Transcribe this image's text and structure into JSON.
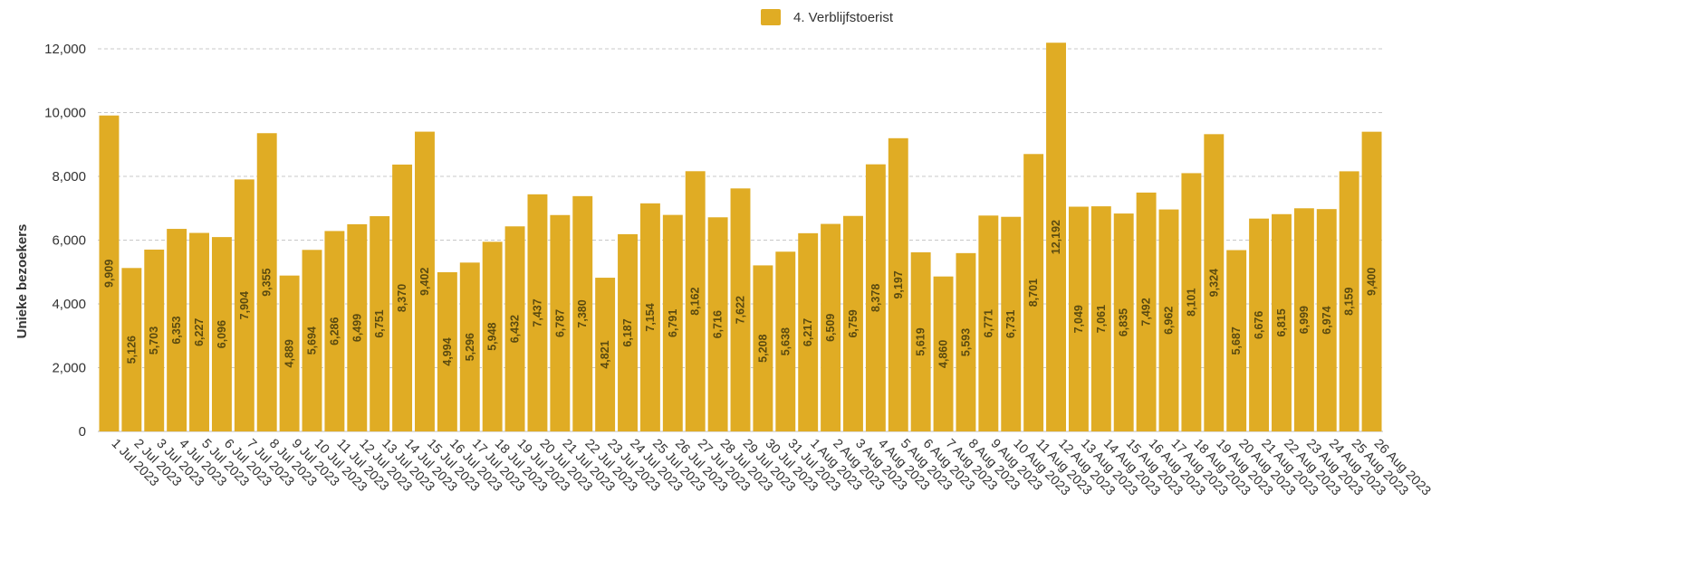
{
  "chart_data": {
    "type": "bar",
    "ylabel": "Unieke bezoekers",
    "ylim": [
      0,
      12000
    ],
    "yticks": [
      0,
      2000,
      4000,
      6000,
      8000,
      10000,
      12000
    ],
    "ytick_labels": [
      "0",
      "2,000",
      "4,000",
      "6,000",
      "8,000",
      "10,000",
      "12,000"
    ],
    "grid": true,
    "legend_position": "top-center",
    "categories": [
      "1 Jul 2023",
      "2 Jul 2023",
      "3 Jul 2023",
      "4 Jul 2023",
      "5 Jul 2023",
      "6 Jul 2023",
      "7 Jul 2023",
      "8 Jul 2023",
      "9 Jul 2023",
      "10 Jul 2023",
      "11 Jul 2023",
      "12 Jul 2023",
      "13 Jul 2023",
      "14 Jul 2023",
      "15 Jul 2023",
      "16 Jul 2023",
      "17 Jul 2023",
      "18 Jul 2023",
      "19 Jul 2023",
      "20 Jul 2023",
      "21 Jul 2023",
      "22 Jul 2023",
      "23 Jul 2023",
      "24 Jul 2023",
      "25 Jul 2023",
      "26 Jul 2023",
      "27 Jul 2023",
      "28 Jul 2023",
      "29 Jul 2023",
      "30 Jul 2023",
      "31 Jul 2023",
      "1 Aug 2023",
      "2 Aug 2023",
      "3 Aug 2023",
      "4 Aug 2023",
      "5 Aug 2023",
      "6 Aug 2023",
      "7 Aug 2023",
      "8 Aug 2023",
      "9 Aug 2023",
      "10 Aug 2023",
      "11 Aug 2023",
      "12 Aug 2023",
      "13 Aug 2023",
      "14 Aug 2023",
      "15 Aug 2023",
      "16 Aug 2023",
      "17 Aug 2023",
      "18 Aug 2023",
      "19 Aug 2023",
      "20 Aug 2023",
      "21 Aug 2023",
      "22 Aug 2023",
      "23 Aug 2023",
      "24 Aug 2023",
      "25 Aug 2023",
      "26 Aug 2023"
    ],
    "series": [
      {
        "name": "4. Verblijfstoerist",
        "color": "#e0ac24",
        "values": [
          9909,
          5126,
          5703,
          6353,
          6227,
          6096,
          7904,
          9355,
          4889,
          5694,
          6286,
          6499,
          6751,
          8370,
          9402,
          4994,
          5296,
          5948,
          6432,
          7437,
          6787,
          7380,
          4821,
          6187,
          7154,
          6791,
          8162,
          6716,
          7622,
          5208,
          5638,
          6217,
          6509,
          6759,
          8378,
          9197,
          5619,
          4860,
          5593,
          6771,
          6731,
          8701,
          12192,
          7049,
          7061,
          6835,
          7492,
          6962,
          8101,
          9324,
          5687,
          6676,
          6815,
          6999,
          6974,
          8159,
          9400
        ],
        "value_labels": [
          "9,909",
          "5,126",
          "5,703",
          "6,353",
          "6,227",
          "6,096",
          "7,904",
          "9,355",
          "4,889",
          "5,694",
          "6,286",
          "6,499",
          "6,751",
          "8,370",
          "9,402",
          "4,994",
          "5,296",
          "5,948",
          "6,432",
          "7,437",
          "6,787",
          "7,380",
          "4,821",
          "6,187",
          "7,154",
          "6,791",
          "8,162",
          "6,716",
          "7,622",
          "5,208",
          "5,638",
          "6,217",
          "6,509",
          "6,759",
          "8,378",
          "9,197",
          "5,619",
          "4,860",
          "5,593",
          "6,771",
          "6,731",
          "8,701",
          "12,192",
          "7,049",
          "7,061",
          "6,835",
          "7,492",
          "6,962",
          "8,101",
          "9,324",
          "5,687",
          "6,676",
          "6,815",
          "6,999",
          "6,974",
          "8,159",
          "9,400"
        ]
      }
    ]
  }
}
